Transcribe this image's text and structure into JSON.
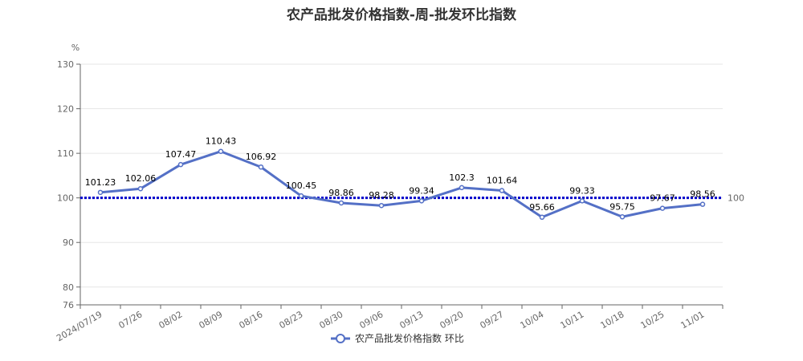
{
  "chart_data": {
    "type": "line",
    "title": "农产品批发价格指数-周-批发环比指数",
    "y_unit": "%",
    "categories": [
      "2024/07/19",
      "07/26",
      "08/02",
      "08/09",
      "08/16",
      "08/23",
      "08/30",
      "09/06",
      "09/13",
      "09/20",
      "09/27",
      "10/04",
      "10/11",
      "10/18",
      "10/25",
      "11/01"
    ],
    "series": [
      {
        "name": "农产品批发价格指数 环比",
        "values": [
          101.23,
          102.06,
          107.47,
          110.43,
          106.92,
          100.45,
          98.86,
          98.28,
          99.34,
          102.3,
          101.64,
          95.66,
          99.33,
          95.75,
          97.67,
          98.56
        ],
        "labels": [
          "101.23",
          "102.06",
          "107.47",
          "110.43",
          "106.92",
          "100.45",
          "98.86",
          "98.28",
          "99.34",
          "102.3",
          "101.64",
          "95.66",
          "99.33",
          "95.75",
          "97.67",
          "98.56"
        ]
      }
    ],
    "ylim": [
      76,
      130
    ],
    "y_ticks": [
      "130",
      "120",
      "110",
      "100",
      "90",
      "80",
      "76"
    ],
    "y_tick_values": [
      130,
      120,
      110,
      100,
      90,
      80,
      76
    ],
    "reference_line": {
      "value": 100,
      "label": "100",
      "color": "#0000cc"
    },
    "grid": true,
    "legend_position": "bottom",
    "colors": {
      "series": "#5470c6"
    }
  }
}
